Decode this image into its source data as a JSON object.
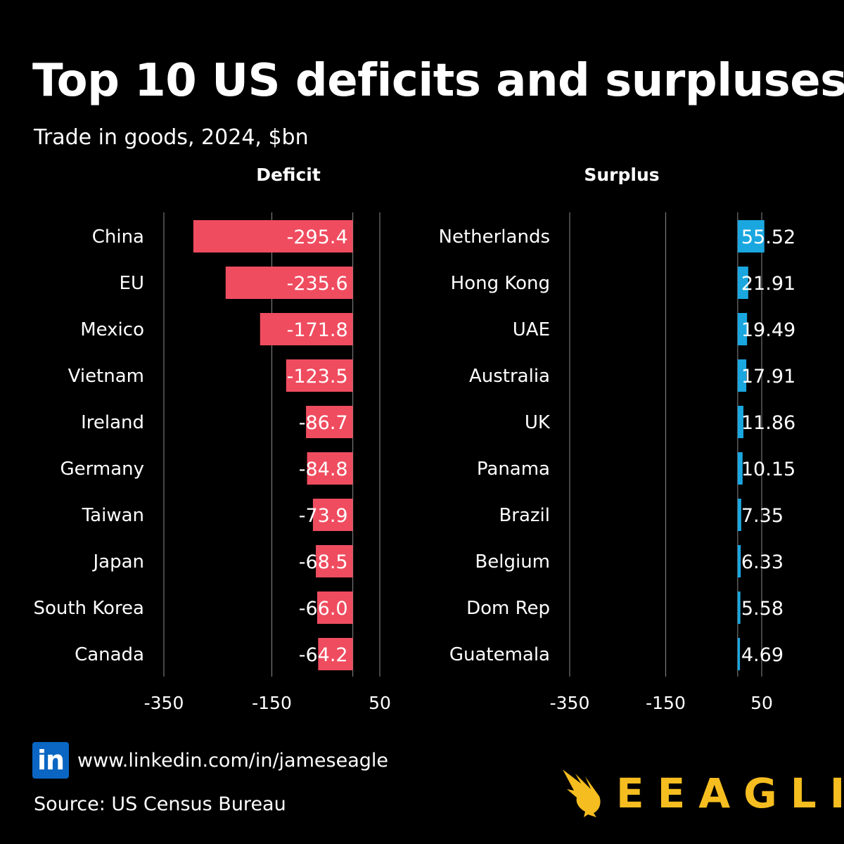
{
  "header": {
    "title": "Top 10 US deficits and surpluses",
    "subtitle": "Trade in goods, 2024, $bn"
  },
  "colors": {
    "background": "#000000",
    "deficit_bar": "#ef4c5f",
    "surplus_bar": "#1aa7e0",
    "gridline": "#8a8a8a",
    "brand": "#f5bd1f",
    "linkedin": "#0a66c2"
  },
  "chart_data": [
    {
      "type": "bar",
      "orientation": "horizontal",
      "title": "Deficit",
      "categories": [
        "China",
        "EU",
        "Mexico",
        "Vietnam",
        "Ireland",
        "Germany",
        "Taiwan",
        "Japan",
        "South Korea",
        "Canada"
      ],
      "values": [
        -295.4,
        -235.6,
        -171.8,
        -123.5,
        -86.7,
        -84.8,
        -73.9,
        -68.5,
        -66.0,
        -64.2
      ],
      "labels": [
        "-295.4",
        "-235.6",
        "-171.8",
        "-123.5",
        "-86.7",
        "-84.8",
        "-73.9",
        "-68.5",
        "-66.0",
        "-64.2"
      ],
      "xlim": [
        -350,
        50
      ],
      "xticks": [
        -350,
        -150,
        50
      ],
      "xtick_labels": [
        "-350",
        "-150",
        "50"
      ],
      "grid": true,
      "xlabel": "",
      "ylabel": ""
    },
    {
      "type": "bar",
      "orientation": "horizontal",
      "title": "Surplus",
      "categories": [
        "Netherlands",
        "Hong Kong",
        "UAE",
        "Australia",
        "UK",
        "Panama",
        "Brazil",
        "Belgium",
        "Dom Rep",
        "Guatemala"
      ],
      "values": [
        55.52,
        21.91,
        19.49,
        17.91,
        11.86,
        10.15,
        7.35,
        6.33,
        5.58,
        4.69
      ],
      "labels": [
        "55.52",
        "21.91",
        "19.49",
        "17.91",
        "11.86",
        "10.15",
        "7.35",
        "6.33",
        "5.58",
        "4.69"
      ],
      "xlim": [
        -350,
        50
      ],
      "xticks": [
        -350,
        -150,
        50
      ],
      "xtick_labels": [
        "-350",
        "-150",
        "50"
      ],
      "grid": true,
      "xlabel": "",
      "ylabel": ""
    }
  ],
  "footer": {
    "linkedin_icon": "linkedin-icon",
    "linkedin_glyph": "in",
    "link": "www.linkedin.com/in/jameseagle",
    "source": "Source: US Census Bureau",
    "brand_icon": "eagle-icon",
    "brand_name": "EEAGLI"
  }
}
